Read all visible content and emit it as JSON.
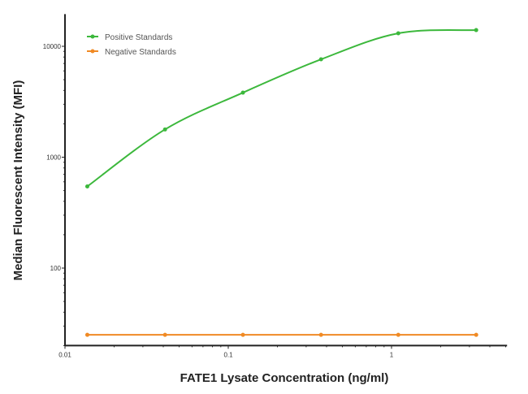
{
  "chart_data": {
    "type": "line",
    "title": "",
    "xlabel": "FATE1 Lysate Concentration (ng/ml)",
    "ylabel": "Median  Fluorescent Intensity  (MFI)",
    "xscale": "log",
    "yscale": "log",
    "xlim": [
      0.01,
      5.1
    ],
    "ylim": [
      20,
      19500
    ],
    "xticks": [
      {
        "value": 0.01,
        "label": "0.01"
      },
      {
        "value": 0.1,
        "label": "0.1"
      },
      {
        "value": 1,
        "label": "1"
      }
    ],
    "yticks": [
      {
        "value": 100,
        "label": "100"
      },
      {
        "value": 1000,
        "label": "1000"
      },
      {
        "value": 10000,
        "label": "10000"
      }
    ],
    "grid": false,
    "legend_placement": "top-left",
    "series": [
      {
        "name": "Positive Standards",
        "color": "#3cb83c",
        "x": [
          0.0137,
          0.041,
          0.123,
          0.37,
          1.1,
          3.3
        ],
        "y": [
          545,
          1780,
          3820,
          7630,
          13100,
          14000
        ]
      },
      {
        "name": "Negative Standards",
        "color": "#f08a24",
        "x": [
          0.0137,
          0.041,
          0.123,
          0.37,
          1.1,
          3.3
        ],
        "y": [
          25,
          25,
          25,
          25,
          25,
          25
        ]
      }
    ]
  }
}
